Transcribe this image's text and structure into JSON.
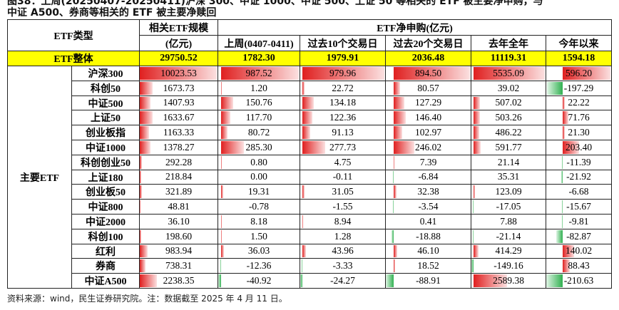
{
  "title_lines": [
    "图38：上周(20250407-20250411)沪深 300、中证 1000、中证 500、上证 50 等相关的 ETF 被主要净申购，与",
    "中证 A500、券商等相关的 ETF 被主要净赎回"
  ],
  "table": {
    "header": {
      "type": "ETF类型",
      "scale": "相关ETF规模",
      "scale_unit": "(亿元)",
      "flow": "ETF净申购(亿元)",
      "periods": [
        "上周(0407-0411)",
        "过去10个交易日",
        "过去20个交易日",
        "去年全年",
        "今年以来"
      ]
    },
    "total": {
      "label": "ETF整体",
      "values": [
        "29750.52",
        "1782.30",
        "1979.91",
        "2036.48",
        "11119.31",
        "1594.18"
      ]
    },
    "group": "主要ETF",
    "rows": [
      {
        "name": "沪深300",
        "values": [
          "10023.53",
          "987.52",
          "979.96",
          "894.50",
          "5535.09",
          "596.20"
        ]
      },
      {
        "name": "科创50",
        "values": [
          "1673.73",
          "1.20",
          "22.72",
          "80.57",
          "39.02",
          "-197.29"
        ]
      },
      {
        "name": "中证500",
        "values": [
          "1407.93",
          "150.76",
          "134.18",
          "127.29",
          "507.02",
          "22.22"
        ]
      },
      {
        "name": "上证50",
        "values": [
          "1633.67",
          "117.70",
          "122.36",
          "146.40",
          "503.26",
          "71.76"
        ]
      },
      {
        "name": "创业板指",
        "values": [
          "1163.33",
          "80.72",
          "91.13",
          "102.97",
          "486.22",
          "21.30"
        ]
      },
      {
        "name": "中证1000",
        "values": [
          "1378.27",
          "285.30",
          "277.73",
          "246.02",
          "591.77",
          "203.40"
        ]
      },
      {
        "name": "科创创业50",
        "values": [
          "292.28",
          "0.80",
          "4.75",
          "7.39",
          "21.14",
          "-11.39"
        ]
      },
      {
        "name": "上证180",
        "values": [
          "218.84",
          "0.00",
          "-0.11",
          "-6.84",
          "35.31",
          "-21.92"
        ]
      },
      {
        "name": "创业板50",
        "values": [
          "321.89",
          "19.31",
          "31.05",
          "32.38",
          "123.09",
          "-6.68"
        ]
      },
      {
        "name": "中证800",
        "values": [
          "48.81",
          "-0.78",
          "-1.55",
          "-3.54",
          "-17.05",
          "-15.67"
        ]
      },
      {
        "name": "中证2000",
        "values": [
          "36.10",
          "8.18",
          "8.94",
          "0.41",
          "7.88",
          "-9.81"
        ]
      },
      {
        "name": "科创100",
        "values": [
          "198.60",
          "1.50",
          "1.28",
          "-18.88",
          "-21.14",
          "-82.87"
        ]
      },
      {
        "name": "红利",
        "values": [
          "983.94",
          "36.03",
          "43.96",
          "46.10",
          "414.29",
          "140.02"
        ]
      },
      {
        "name": "券商",
        "values": [
          "738.31",
          "-12.36",
          "-3.33",
          "18.52",
          "-149.16",
          "88.43"
        ]
      },
      {
        "name": "中证A500",
        "values": [
          "2238.35",
          "-40.92",
          "-24.27",
          "-88.91",
          "2589.38",
          "-210.63"
        ]
      }
    ]
  },
  "footer": "资料来源：wind，民生证券研究院。注：数据截至 2025 年 4 月 11 日。"
}
